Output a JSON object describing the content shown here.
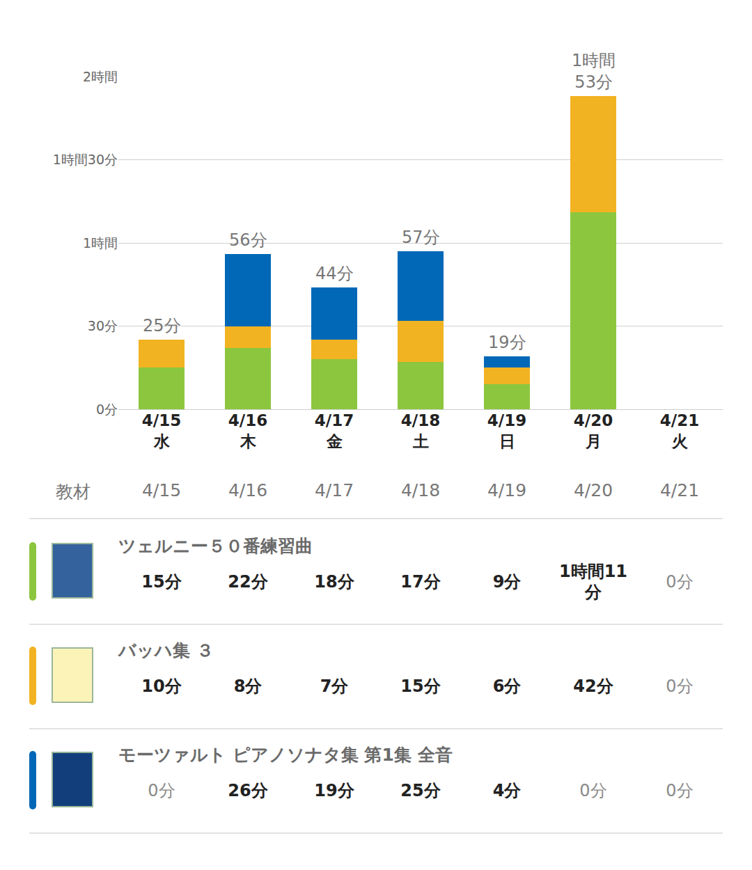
{
  "chart_data": {
    "type": "bar",
    "stacked": true,
    "grid": true,
    "categories": [
      "4/15",
      "4/16",
      "4/17",
      "4/18",
      "4/19",
      "4/20",
      "4/21"
    ],
    "category_sublabels": [
      "水",
      "木",
      "金",
      "土",
      "日",
      "月",
      "火"
    ],
    "ylim": [
      0,
      120
    ],
    "yticks": [
      {
        "value": 0,
        "label": "0分"
      },
      {
        "value": 30,
        "label": "30分"
      },
      {
        "value": 60,
        "label": "1時間"
      },
      {
        "value": 90,
        "label": "1時間30分"
      },
      {
        "value": 120,
        "label": "2時間"
      }
    ],
    "series": [
      {
        "name": "ツェルニー５０番練習曲",
        "color": "#8cc63f",
        "values": [
          15,
          22,
          18,
          17,
          9,
          71,
          0
        ],
        "value_labels": [
          "15分",
          "22分",
          "18分",
          "17分",
          "9分",
          "1時間11分",
          "0分"
        ]
      },
      {
        "name": "バッハ集 ３",
        "color": "#f2b322",
        "values": [
          10,
          8,
          7,
          15,
          6,
          42,
          0
        ],
        "value_labels": [
          "10分",
          "8分",
          "7分",
          "15分",
          "6分",
          "42分",
          "0分"
        ]
      },
      {
        "name": "モーツァルト ピアノソナタ集 第1集 全音",
        "color": "#0068b7",
        "values": [
          0,
          26,
          19,
          25,
          4,
          0,
          0
        ],
        "value_labels": [
          "0分",
          "26分",
          "19分",
          "25分",
          "4分",
          "0分",
          "0分"
        ]
      }
    ],
    "totals": {
      "values": [
        25,
        56,
        44,
        57,
        19,
        113,
        null
      ],
      "value_labels": [
        "25分",
        "56分",
        "44分",
        "57分",
        "19分",
        "1時間\n53分",
        null
      ]
    }
  },
  "table": {
    "header": "教材"
  }
}
